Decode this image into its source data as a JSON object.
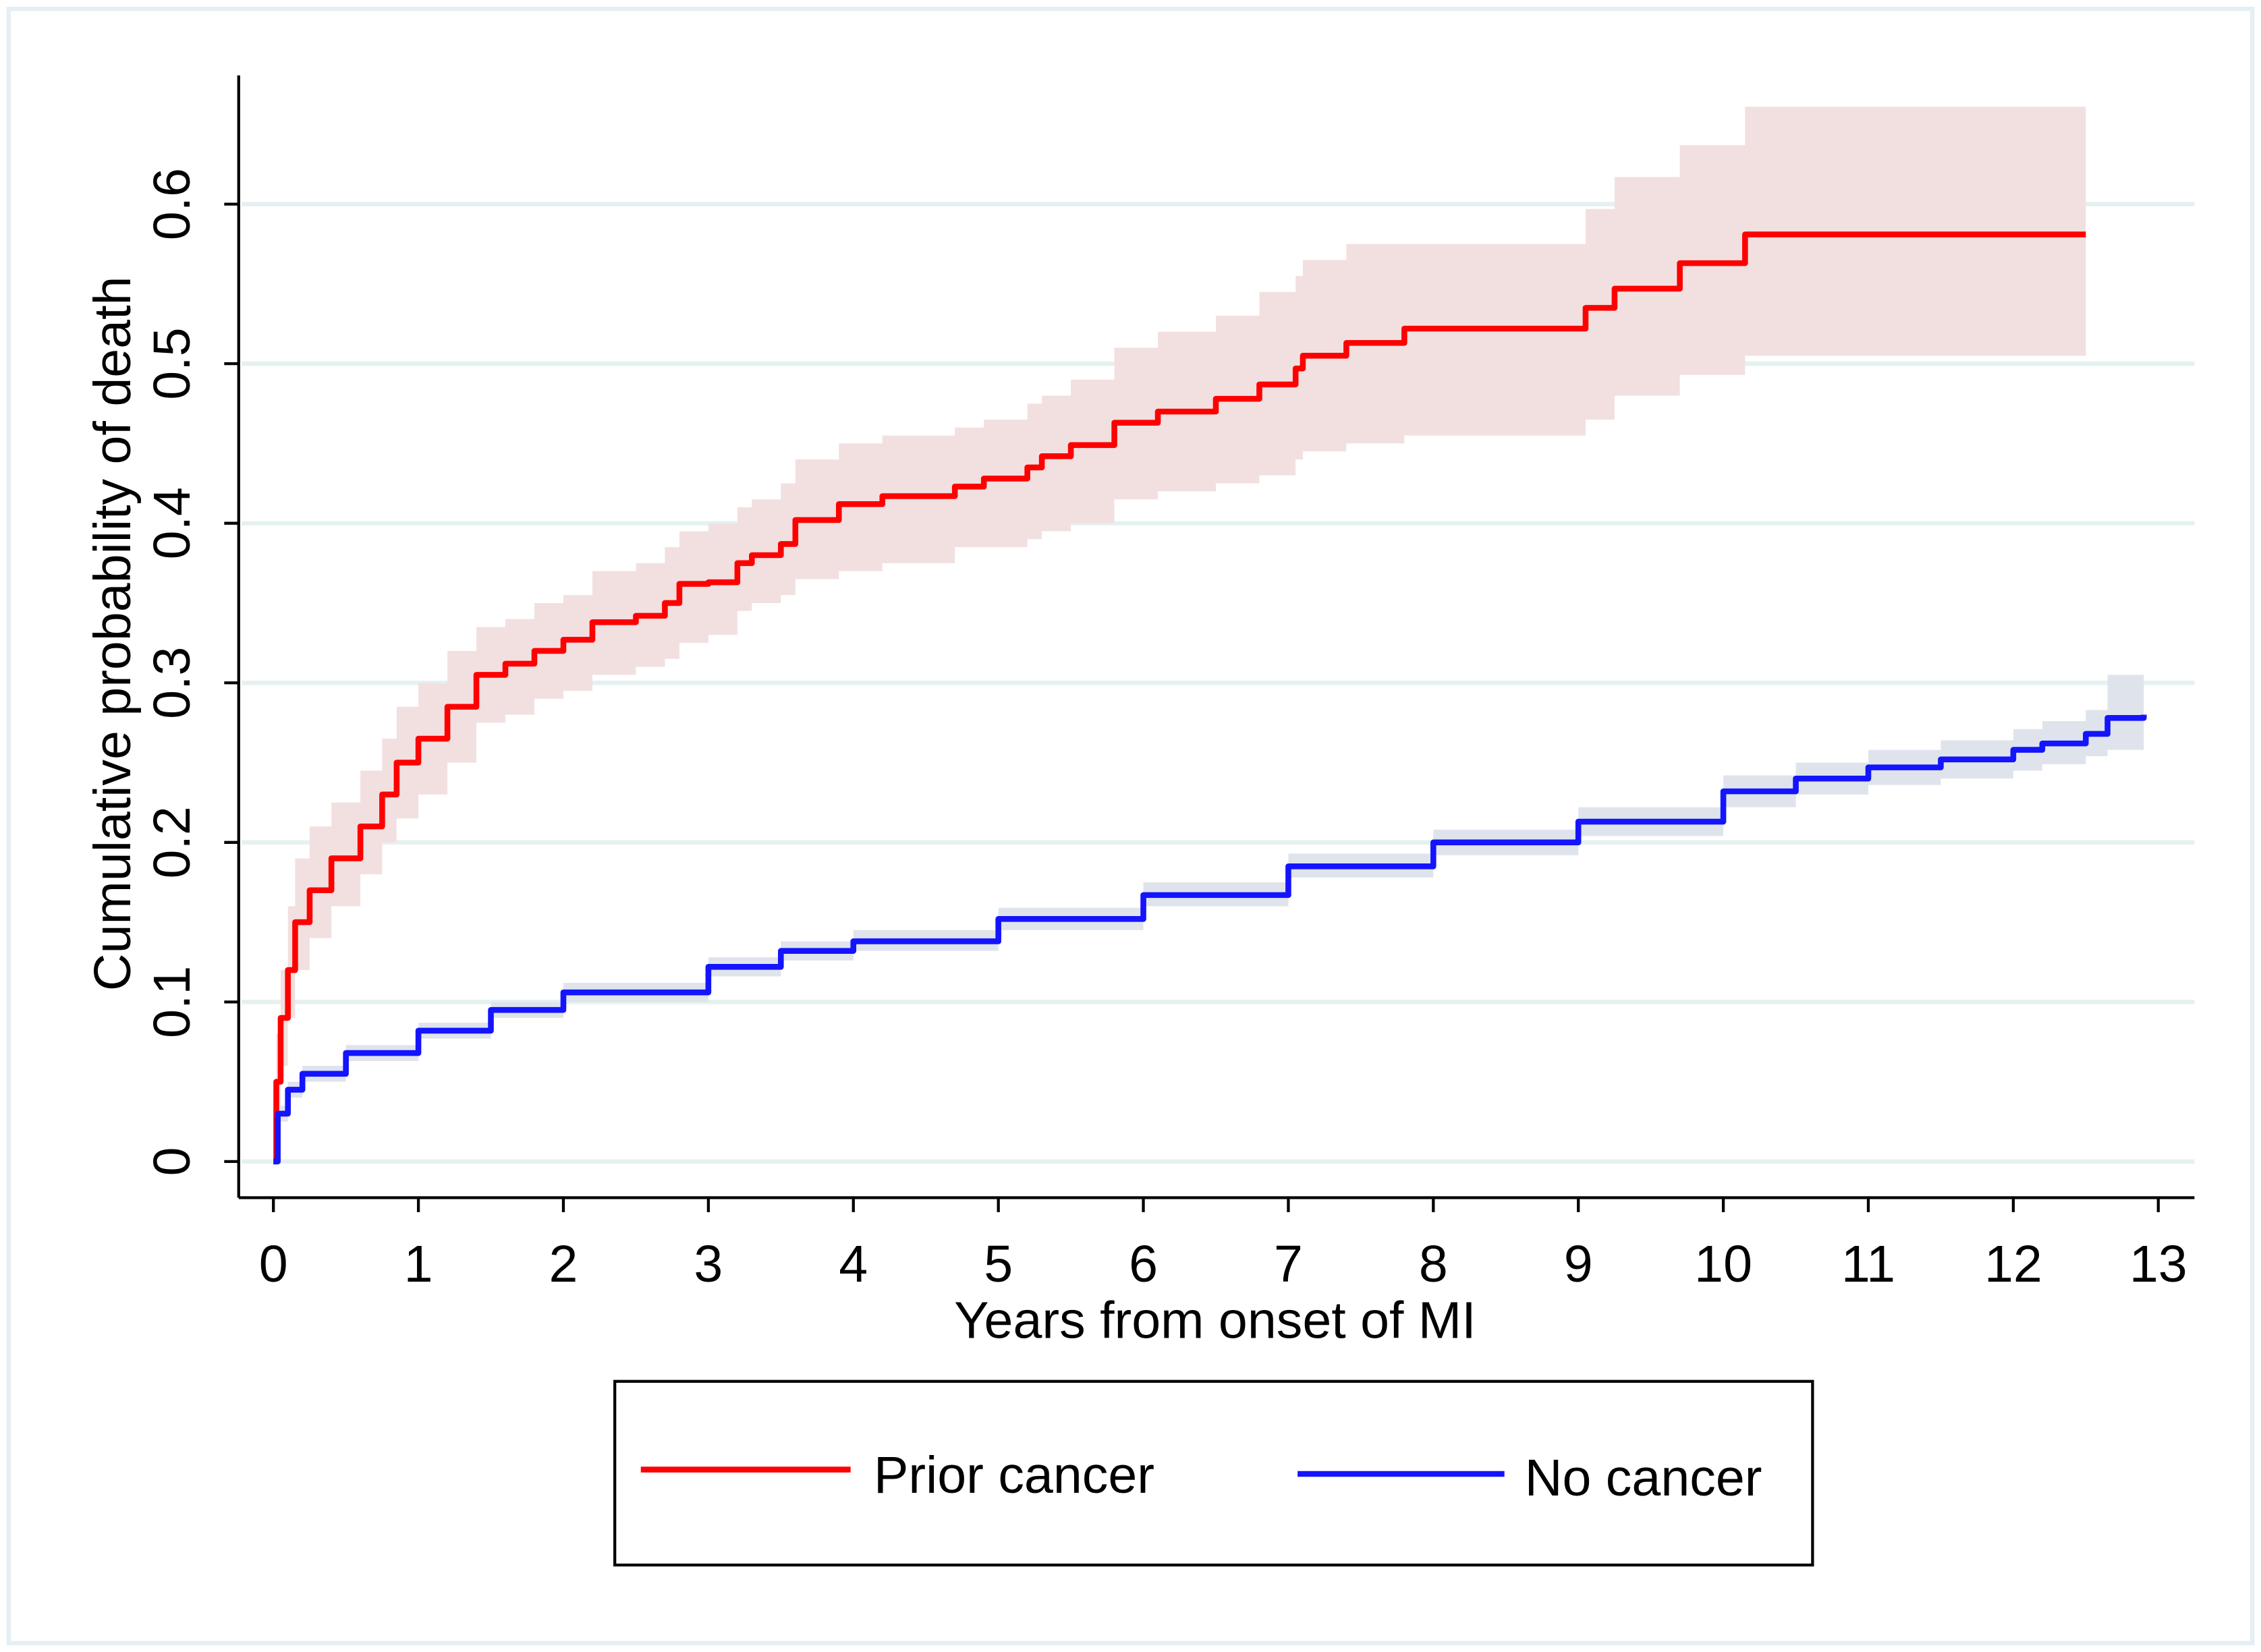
{
  "chart_data": {
    "type": "line",
    "title": "",
    "xlabel": "Years from onset of MI",
    "ylabel": "Cumulative probability of death",
    "xlim": [
      0,
      13
    ],
    "ylim": [
      0,
      0.6
    ],
    "xticks": [
      "0",
      "1",
      "2",
      "3",
      "4",
      "5",
      "6",
      "7",
      "8",
      "9",
      "10",
      "11",
      "12",
      "13"
    ],
    "yticks": [
      "0",
      "0.1",
      "0.2",
      "0.3",
      "0.4",
      "0.5",
      "0.6"
    ],
    "grid": "horizontal",
    "step": true,
    "legend_position": "bottom",
    "series": [
      {
        "name": "Prior cancer",
        "color": "#ff0000",
        "band_color": "#f2e0e0",
        "x": [
          0,
          0.02,
          0.05,
          0.1,
          0.15,
          0.25,
          0.4,
          0.6,
          0.75,
          0.85,
          1.0,
          1.2,
          1.4,
          1.6,
          1.8,
          2.0,
          2.2,
          2.5,
          2.7,
          2.8,
          3.0,
          3.2,
          3.3,
          3.5,
          3.6,
          3.9,
          4.2,
          4.7,
          4.9,
          5.2,
          5.3,
          5.5,
          5.8,
          6.1,
          6.5,
          6.8,
          7.05,
          7.1,
          7.4,
          7.8,
          9.05,
          9.25,
          9.7,
          10.15,
          12.5
        ],
        "y": [
          0,
          0.05,
          0.09,
          0.12,
          0.15,
          0.17,
          0.19,
          0.21,
          0.23,
          0.25,
          0.265,
          0.285,
          0.305,
          0.312,
          0.32,
          0.327,
          0.338,
          0.342,
          0.35,
          0.362,
          0.363,
          0.375,
          0.38,
          0.387,
          0.402,
          0.412,
          0.417,
          0.423,
          0.428,
          0.435,
          0.442,
          0.449,
          0.463,
          0.47,
          0.478,
          0.487,
          0.497,
          0.505,
          0.513,
          0.522,
          0.535,
          0.547,
          0.563,
          0.581,
          0.581
        ],
        "lower": [
          0,
          0.03,
          0.06,
          0.09,
          0.12,
          0.14,
          0.16,
          0.18,
          0.2,
          0.215,
          0.23,
          0.25,
          0.275,
          0.28,
          0.29,
          0.295,
          0.305,
          0.31,
          0.315,
          0.325,
          0.33,
          0.345,
          0.35,
          0.355,
          0.365,
          0.37,
          0.375,
          0.385,
          0.385,
          0.39,
          0.395,
          0.4,
          0.415,
          0.42,
          0.425,
          0.43,
          0.44,
          0.445,
          0.45,
          0.455,
          0.465,
          0.48,
          0.493,
          0.505,
          0.505
        ],
        "upper": [
          0,
          0.08,
          0.12,
          0.16,
          0.19,
          0.21,
          0.225,
          0.245,
          0.265,
          0.285,
          0.3,
          0.32,
          0.335,
          0.34,
          0.35,
          0.355,
          0.37,
          0.375,
          0.385,
          0.395,
          0.4,
          0.41,
          0.415,
          0.425,
          0.44,
          0.45,
          0.455,
          0.46,
          0.465,
          0.475,
          0.48,
          0.49,
          0.51,
          0.52,
          0.53,
          0.545,
          0.555,
          0.565,
          0.575,
          0.575,
          0.597,
          0.617,
          0.637,
          0.661,
          0.661
        ]
      },
      {
        "name": "No cancer",
        "color": "#1414ff",
        "band_color": "#dfe4ec",
        "x": [
          0,
          0.03,
          0.1,
          0.2,
          0.5,
          1,
          1.5,
          2,
          3,
          3.5,
          4,
          5,
          6,
          7,
          8,
          9,
          10,
          10.5,
          11,
          11.5,
          12,
          12.2,
          12.5,
          12.65,
          12.9
        ],
        "y": [
          0,
          0.03,
          0.045,
          0.055,
          0.068,
          0.082,
          0.095,
          0.106,
          0.122,
          0.132,
          0.138,
          0.152,
          0.167,
          0.185,
          0.2,
          0.213,
          0.232,
          0.24,
          0.247,
          0.252,
          0.258,
          0.262,
          0.268,
          0.278,
          0.28
        ],
        "lower": [
          0,
          0.025,
          0.04,
          0.05,
          0.063,
          0.077,
          0.09,
          0.1,
          0.116,
          0.126,
          0.132,
          0.145,
          0.16,
          0.178,
          0.192,
          0.204,
          0.222,
          0.23,
          0.236,
          0.24,
          0.245,
          0.249,
          0.254,
          0.258,
          0.258
        ],
        "upper": [
          0,
          0.035,
          0.05,
          0.06,
          0.073,
          0.087,
          0.1,
          0.112,
          0.128,
          0.138,
          0.145,
          0.159,
          0.175,
          0.193,
          0.208,
          0.222,
          0.242,
          0.25,
          0.258,
          0.264,
          0.271,
          0.276,
          0.283,
          0.305,
          0.305
        ]
      }
    ]
  }
}
